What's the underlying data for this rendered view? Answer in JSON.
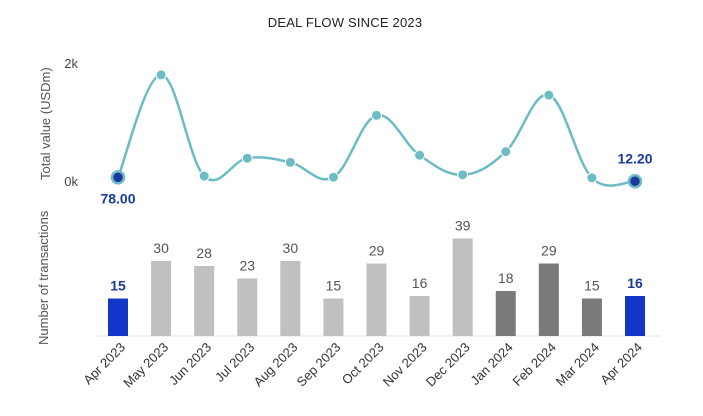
{
  "chart_data": {
    "title": "DEAL FLOW SINCE 2023",
    "categories": [
      "Apr 2023",
      "May 2023",
      "Jun 2023",
      "Jul 2023",
      "Aug 2023",
      "Sep 2023",
      "Oct 2023",
      "Nov 2023",
      "Dec 2023",
      "Jan 2024",
      "Feb 2024",
      "Mar 2024",
      "Apr 2024"
    ],
    "line": {
      "type": "line",
      "ylabel": "Total value (USDm)",
      "yticks": [
        "0k",
        "2k"
      ],
      "ylim": [
        0,
        2000
      ],
      "values": [
        78,
        1800,
        100,
        400,
        330,
        80,
        1120,
        450,
        120,
        510,
        1460,
        70,
        12.2
      ],
      "point_labels": [
        {
          "index": 0,
          "text": "78.00"
        },
        {
          "index": 12,
          "text": "12.20"
        }
      ],
      "color": "#6bbcc4",
      "highlight_color": "#1a3a9c"
    },
    "bars": {
      "type": "bar",
      "ylabel": "Number of transactions",
      "values": [
        15,
        30,
        28,
        23,
        30,
        15,
        29,
        16,
        39,
        18,
        29,
        15,
        16
      ],
      "colors": [
        "#1236c8",
        "#c0c0c0",
        "#c0c0c0",
        "#c0c0c0",
        "#c0c0c0",
        "#c0c0c0",
        "#c0c0c0",
        "#c0c0c0",
        "#c0c0c0",
        "#7a7a7a",
        "#7a7a7a",
        "#7a7a7a",
        "#1236c8"
      ],
      "highlight": [
        0,
        12
      ]
    }
  }
}
